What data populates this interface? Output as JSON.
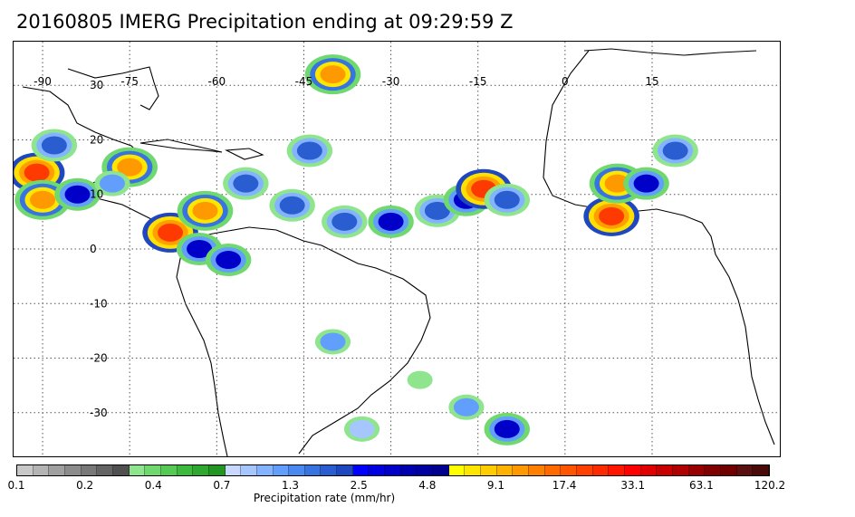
{
  "title": "20160805 IMERG Precipitation ending at 09:29:59 Z",
  "map": {
    "lon_range": [
      -95,
      37
    ],
    "lat_range": [
      38,
      -38
    ],
    "lon_ticks": [
      {
        "value": -90,
        "label": "-90"
      },
      {
        "value": -75,
        "label": "-75"
      },
      {
        "value": -60,
        "label": "-60"
      },
      {
        "value": -45,
        "label": "-45"
      },
      {
        "value": -30,
        "label": "-30"
      },
      {
        "value": -15,
        "label": "-15"
      },
      {
        "value": 0,
        "label": "0"
      },
      {
        "value": 15,
        "label": "15"
      }
    ],
    "lat_ticks": [
      {
        "value": 30,
        "label": "30"
      },
      {
        "value": 20,
        "label": "20"
      },
      {
        "value": 10,
        "label": "10"
      },
      {
        "value": 0,
        "label": "0"
      },
      {
        "value": -10,
        "label": "-10"
      },
      {
        "value": -20,
        "label": "-20"
      },
      {
        "value": -30,
        "label": "-30"
      }
    ],
    "gridlines": true,
    "precip_cells": [
      {
        "lon": -91,
        "lat": 14,
        "rate": 17.4
      },
      {
        "lon": -90,
        "lat": 9,
        "rate": 9.1
      },
      {
        "lon": -84,
        "lat": 10,
        "rate": 4.8
      },
      {
        "lon": -88,
        "lat": 19,
        "rate": 2.5
      },
      {
        "lon": -75,
        "lat": 15,
        "rate": 9.1
      },
      {
        "lon": -78,
        "lat": 12,
        "rate": 1.3
      },
      {
        "lon": -68,
        "lat": 3,
        "rate": 17.4
      },
      {
        "lon": -62,
        "lat": 7,
        "rate": 9.1
      },
      {
        "lon": -63,
        "lat": 0,
        "rate": 4.8
      },
      {
        "lon": -58,
        "lat": -2,
        "rate": 4.8
      },
      {
        "lon": -47,
        "lat": 8,
        "rate": 2.5
      },
      {
        "lon": -44,
        "lat": 18,
        "rate": 2.5
      },
      {
        "lon": -40,
        "lat": 32,
        "rate": 9.1
      },
      {
        "lon": -55,
        "lat": 12,
        "rate": 2.5
      },
      {
        "lon": -38,
        "lat": 5,
        "rate": 2.5
      },
      {
        "lon": -30,
        "lat": 5,
        "rate": 4.8
      },
      {
        "lon": -22,
        "lat": 7,
        "rate": 2.5
      },
      {
        "lon": -17,
        "lat": 9,
        "rate": 4.8
      },
      {
        "lon": -14,
        "lat": 11,
        "rate": 17.4
      },
      {
        "lon": -10,
        "lat": 9,
        "rate": 2.5
      },
      {
        "lon": 8,
        "lat": 6,
        "rate": 17.4
      },
      {
        "lon": 9,
        "lat": 12,
        "rate": 9.1
      },
      {
        "lon": 14,
        "lat": 12,
        "rate": 4.8
      },
      {
        "lon": 19,
        "lat": 18,
        "rate": 2.5
      },
      {
        "lon": -10,
        "lat": -33,
        "rate": 4.8
      },
      {
        "lon": -17,
        "lat": -29,
        "rate": 1.3
      },
      {
        "lon": -40,
        "lat": -17,
        "rate": 1.3
      },
      {
        "lon": -35,
        "lat": -33,
        "rate": 0.7
      },
      {
        "lon": -25,
        "lat": -24,
        "rate": 0.4
      }
    ]
  },
  "colorbar": {
    "colors": [
      "#c8c8c8",
      "#b4b4b4",
      "#a0a0a0",
      "#8c8c8c",
      "#787878",
      "#646464",
      "#505050",
      "#8ee58e",
      "#6fd86f",
      "#54c954",
      "#3dba3d",
      "#2ea82e",
      "#229522",
      "#c8d8ff",
      "#a6c6ff",
      "#84b4ff",
      "#629ffc",
      "#4a89f0",
      "#3874e0",
      "#2a5ed0",
      "#1f48c0",
      "#0000ff",
      "#0000e0",
      "#0000c8",
      "#0000b0",
      "#0000a0",
      "#000090",
      "#ffff00",
      "#ffe600",
      "#ffcc00",
      "#ffb300",
      "#ff9900",
      "#ff8000",
      "#ff6a00",
      "#ff5500",
      "#ff4000",
      "#ff2b00",
      "#ff1500",
      "#ff0000",
      "#e00000",
      "#c80000",
      "#b00000",
      "#980000",
      "#800000",
      "#700000",
      "#5a1010",
      "#4a0a0a"
    ],
    "tick_labels": [
      "0.1",
      "0.2",
      "0.4",
      "0.7",
      "1.3",
      "2.5",
      "4.8",
      "9.1",
      "17.4",
      "33.1",
      "63.1",
      "120.2"
    ],
    "label": "Precipitation rate (mm/hr)"
  }
}
